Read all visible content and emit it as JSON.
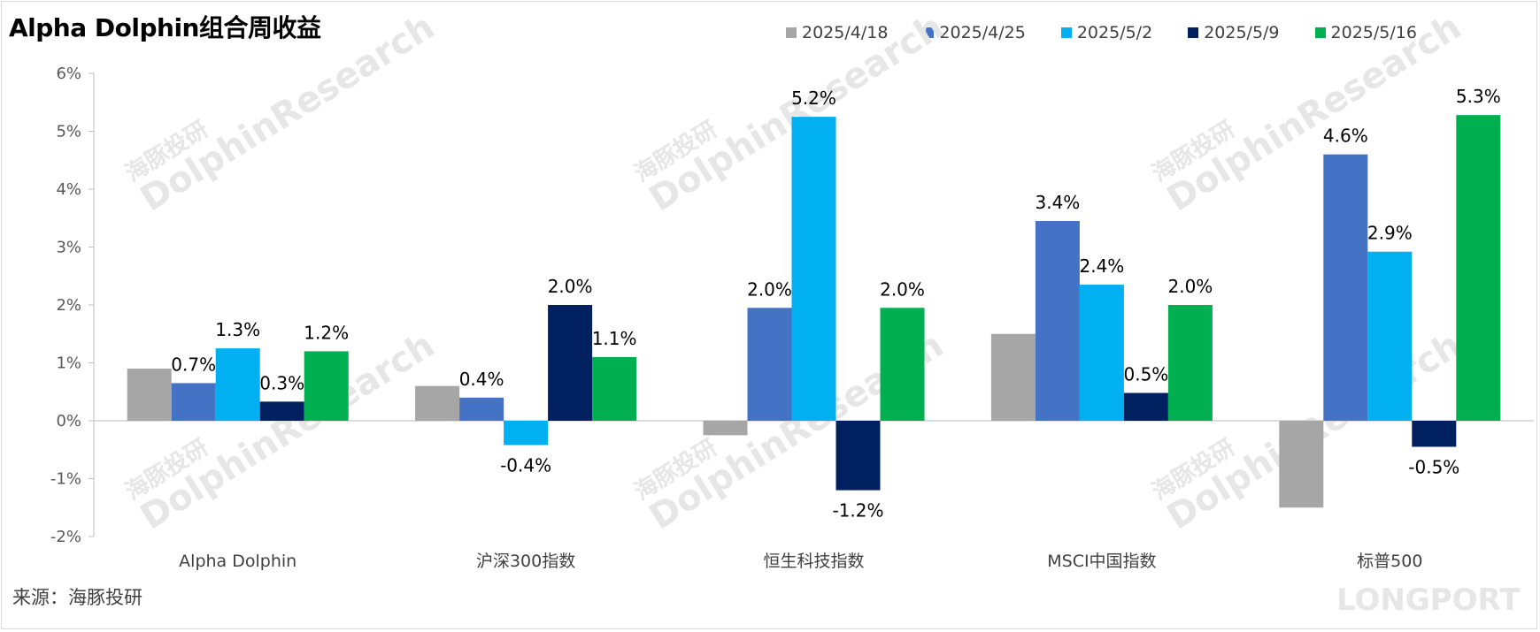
{
  "chart_data": {
    "type": "bar",
    "title": "Alpha Dolphin组合周收益",
    "categories": [
      "Alpha Dolphin",
      "沪深300指数",
      "恒生科技指数",
      "MSCI中国指数",
      "标普500"
    ],
    "series": [
      {
        "name": "2025/4/18",
        "color": "#a6a6a6",
        "values": [
          0.9,
          0.6,
          -0.25,
          1.5,
          -1.5
        ],
        "labels": [
          "",
          "",
          "",
          "",
          ""
        ]
      },
      {
        "name": "2025/4/25",
        "color": "#4472c4",
        "values": [
          0.65,
          0.4,
          1.95,
          3.45,
          4.6
        ],
        "labels": [
          "0.7%",
          "0.4%",
          "2.0%",
          "3.4%",
          "4.6%"
        ]
      },
      {
        "name": "2025/5/2",
        "color": "#00b0f0",
        "values": [
          1.25,
          -0.42,
          5.25,
          2.35,
          2.92
        ],
        "labels": [
          "1.3%",
          "-0.4%",
          "5.2%",
          "2.4%",
          "2.9%"
        ]
      },
      {
        "name": "2025/5/9",
        "color": "#002060",
        "values": [
          0.33,
          2.0,
          -1.2,
          0.48,
          -0.45
        ],
        "labels": [
          "0.3%",
          "2.0%",
          "-1.2%",
          "0.5%",
          "-0.5%"
        ]
      },
      {
        "name": "2025/5/16",
        "color": "#00b050",
        "values": [
          1.2,
          1.1,
          1.95,
          2.0,
          5.28
        ],
        "labels": [
          "1.2%",
          "1.1%",
          "2.0%",
          "2.0%",
          "5.3%"
        ]
      }
    ],
    "yticks": [
      "6%",
      "5%",
      "4%",
      "3%",
      "2%",
      "1%",
      "0%",
      "-1%",
      "-2%"
    ],
    "ylim": [
      -2,
      6
    ],
    "legend_position": "top-right",
    "grid": false
  },
  "source": "来源：海豚投研",
  "watermark": {
    "cn": "海豚投研",
    "en": "DolphinResearch",
    "brand": "LONGPORT"
  }
}
